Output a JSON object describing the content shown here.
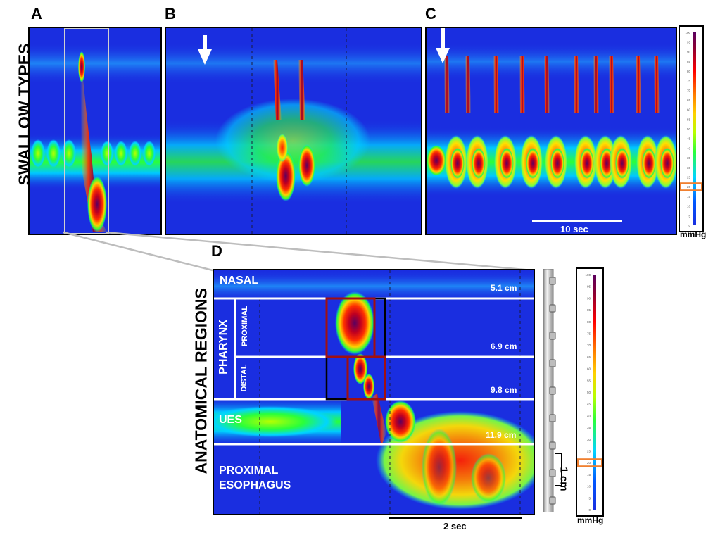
{
  "panels": {
    "a": "A",
    "b": "B",
    "c": "C",
    "d": "D"
  },
  "side_labels": {
    "swallow_types": "SWALLOW TYPES",
    "anatomical_regions": "ANATOMICAL REGIONS"
  },
  "regions": {
    "nasal": "NASAL",
    "pharynx": "PHARYNX",
    "proximal": "PROXIMAL",
    "distal": "DISTAL",
    "ues": "UES",
    "esophagus_line1": "PROXIMAL",
    "esophagus_line2": "ESOPHAGUS"
  },
  "depths": [
    "5.1 cm",
    "6.9 cm",
    "9.8 cm",
    "11.9 cm"
  ],
  "time_bars": {
    "top": "10 sec",
    "bottom": "2 sec"
  },
  "catheter_label": "1 cm",
  "pressure_unit": "mmHg",
  "colorscale": {
    "ticks": [
      "100",
      "95",
      "90",
      "85",
      "80",
      "75",
      "70",
      "65",
      "60",
      "55",
      "50",
      "45",
      "40",
      "35",
      "30",
      "25",
      "20",
      "15",
      "10",
      "5",
      "0"
    ],
    "highlighted_value": "20",
    "colors": [
      "#5a0060",
      "#8b0033",
      "#ff0000",
      "#ff7a00",
      "#ffd000",
      "#b7ff00",
      "#2aff3a",
      "#00d5ff",
      "#0057ff",
      "#1a2ee0"
    ],
    "highlight_color": "#f08030"
  }
}
